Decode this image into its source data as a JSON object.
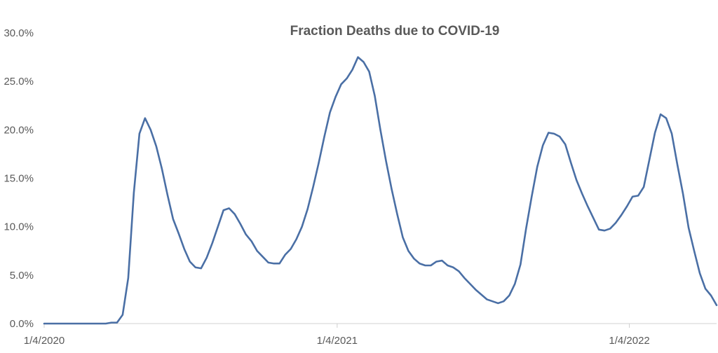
{
  "chart_data": {
    "type": "line",
    "title": "Fraction Deaths due to COVID-19",
    "xlabel": "",
    "ylabel": "",
    "ylim": [
      0,
      0.3
    ],
    "yticks": [
      "0.0%",
      "5.0%",
      "10.0%",
      "15.0%",
      "20.0%",
      "25.0%",
      "30.0%"
    ],
    "xticks": [
      "1/4/2020",
      "1/4/2021",
      "1/4/2022"
    ],
    "x_start": "1/4/2020",
    "x_step_days": 7,
    "grid": false,
    "legend": "none",
    "series": [
      {
        "color": "#4a6fa5",
        "values": [
          0.0,
          0.0,
          0.0,
          0.0,
          0.0,
          0.0,
          0.0,
          0.0,
          0.0,
          0.0,
          0.0,
          0.0,
          0.001,
          0.001,
          0.009,
          0.047,
          0.135,
          0.196,
          0.212,
          0.2,
          0.183,
          0.16,
          0.133,
          0.108,
          0.093,
          0.077,
          0.064,
          0.058,
          0.057,
          0.068,
          0.083,
          0.1,
          0.117,
          0.119,
          0.113,
          0.103,
          0.092,
          0.085,
          0.075,
          0.069,
          0.063,
          0.062,
          0.062,
          0.071,
          0.077,
          0.087,
          0.1,
          0.118,
          0.141,
          0.166,
          0.193,
          0.218,
          0.234,
          0.247,
          0.253,
          0.262,
          0.275,
          0.27,
          0.26,
          0.235,
          0.2,
          0.168,
          0.139,
          0.113,
          0.089,
          0.075,
          0.067,
          0.062,
          0.06,
          0.06,
          0.064,
          0.065,
          0.06,
          0.058,
          0.054,
          0.047,
          0.041,
          0.035,
          0.03,
          0.025,
          0.023,
          0.021,
          0.023,
          0.029,
          0.041,
          0.061,
          0.098,
          0.131,
          0.162,
          0.184,
          0.197,
          0.196,
          0.193,
          0.185,
          0.166,
          0.148,
          0.134,
          0.121,
          0.109,
          0.097,
          0.096,
          0.098,
          0.104,
          0.112,
          0.121,
          0.131,
          0.132,
          0.141,
          0.169,
          0.197,
          0.216,
          0.212,
          0.196,
          0.164,
          0.134,
          0.099,
          0.075,
          0.052,
          0.036,
          0.029,
          0.019
        ]
      }
    ]
  }
}
